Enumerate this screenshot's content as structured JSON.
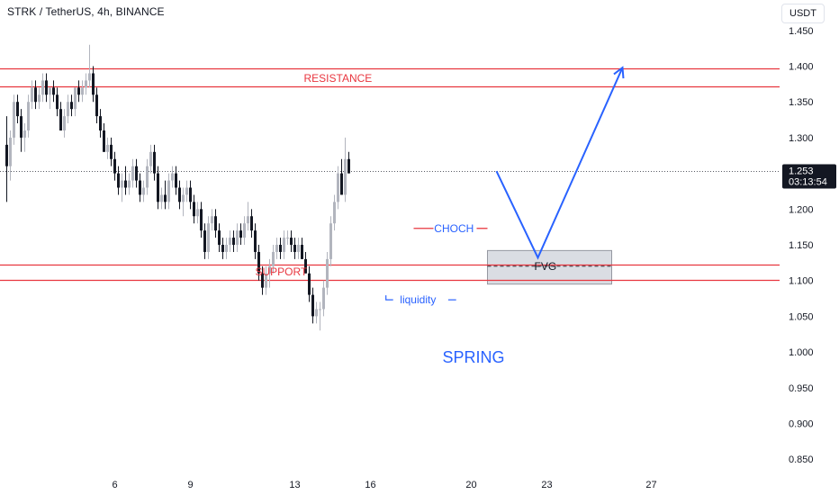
{
  "header": {
    "title": "STRK / TetherUS, 4h, BINANCE",
    "currency_button": "USDT"
  },
  "chart_data": {
    "type": "candlestick",
    "symbol": "STRK / TetherUS",
    "interval": "4h",
    "exchange": "BINANCE",
    "ylim": [
      0.82,
      1.475
    ],
    "y_ticks": [
      {
        "value": 1.45,
        "label": "1.450"
      },
      {
        "value": 1.4,
        "label": "1.400"
      },
      {
        "value": 1.35,
        "label": "1.350"
      },
      {
        "value": 1.3,
        "label": "1.300"
      },
      {
        "value": 1.2,
        "label": "1.200"
      },
      {
        "value": 1.15,
        "label": "1.150"
      },
      {
        "value": 1.1,
        "label": "1.100"
      },
      {
        "value": 1.05,
        "label": "1.050"
      },
      {
        "value": 1.0,
        "label": "1.000"
      },
      {
        "value": 0.95,
        "label": "0.950"
      },
      {
        "value": 0.9,
        "label": "0.900"
      },
      {
        "value": 0.85,
        "label": "0.850"
      }
    ],
    "x_ticks": [
      {
        "label": "6",
        "i": 30
      },
      {
        "label": "9",
        "i": 51
      },
      {
        "label": "13",
        "i": 80
      },
      {
        "label": "16",
        "i": 101
      },
      {
        "label": "20",
        "i": 129
      },
      {
        "label": "23",
        "i": 150
      },
      {
        "label": "27",
        "i": 179
      }
    ],
    "last_price": {
      "value": 1.253,
      "label": "1.253",
      "countdown": "03:13:54"
    },
    "colors": {
      "up": "#b2b5be",
      "down": "#131722",
      "level": "#e8363f",
      "projection": "#2962ff",
      "fvg_fill": "#d1d4dc"
    },
    "candles": [
      [
        1.29,
        1.33,
        1.21,
        1.26
      ],
      [
        1.26,
        1.31,
        1.24,
        1.3
      ],
      [
        1.3,
        1.36,
        1.29,
        1.35
      ],
      [
        1.35,
        1.36,
        1.32,
        1.33
      ],
      [
        1.33,
        1.34,
        1.28,
        1.3
      ],
      [
        1.3,
        1.32,
        1.28,
        1.31
      ],
      [
        1.31,
        1.36,
        1.3,
        1.35
      ],
      [
        1.35,
        1.38,
        1.34,
        1.37
      ],
      [
        1.37,
        1.38,
        1.34,
        1.35
      ],
      [
        1.35,
        1.37,
        1.34,
        1.36
      ],
      [
        1.36,
        1.39,
        1.35,
        1.38
      ],
      [
        1.38,
        1.39,
        1.35,
        1.36
      ],
      [
        1.36,
        1.37,
        1.34,
        1.37
      ],
      [
        1.37,
        1.38,
        1.35,
        1.36
      ],
      [
        1.36,
        1.37,
        1.33,
        1.34
      ],
      [
        1.34,
        1.35,
        1.31,
        1.31
      ],
      [
        1.31,
        1.34,
        1.3,
        1.33
      ],
      [
        1.33,
        1.36,
        1.32,
        1.35
      ],
      [
        1.35,
        1.36,
        1.33,
        1.34
      ],
      [
        1.34,
        1.37,
        1.33,
        1.37
      ],
      [
        1.37,
        1.38,
        1.35,
        1.36
      ],
      [
        1.36,
        1.38,
        1.35,
        1.37
      ],
      [
        1.37,
        1.39,
        1.36,
        1.38
      ],
      [
        1.38,
        1.43,
        1.37,
        1.39
      ],
      [
        1.39,
        1.4,
        1.35,
        1.36
      ],
      [
        1.36,
        1.37,
        1.32,
        1.33
      ],
      [
        1.33,
        1.34,
        1.3,
        1.31
      ],
      [
        1.31,
        1.32,
        1.28,
        1.28
      ],
      [
        1.28,
        1.3,
        1.27,
        1.29
      ],
      [
        1.29,
        1.3,
        1.26,
        1.27
      ],
      [
        1.27,
        1.28,
        1.24,
        1.25
      ],
      [
        1.25,
        1.26,
        1.22,
        1.23
      ],
      [
        1.23,
        1.25,
        1.21,
        1.24
      ],
      [
        1.24,
        1.26,
        1.22,
        1.23
      ],
      [
        1.23,
        1.25,
        1.22,
        1.24
      ],
      [
        1.24,
        1.27,
        1.23,
        1.26
      ],
      [
        1.26,
        1.27,
        1.23,
        1.24
      ],
      [
        1.24,
        1.25,
        1.21,
        1.22
      ],
      [
        1.22,
        1.24,
        1.21,
        1.23
      ],
      [
        1.23,
        1.27,
        1.22,
        1.26
      ],
      [
        1.26,
        1.29,
        1.25,
        1.28
      ],
      [
        1.28,
        1.29,
        1.24,
        1.25
      ],
      [
        1.25,
        1.26,
        1.2,
        1.21
      ],
      [
        1.21,
        1.23,
        1.2,
        1.22
      ],
      [
        1.22,
        1.24,
        1.2,
        1.21
      ],
      [
        1.21,
        1.25,
        1.2,
        1.24
      ],
      [
        1.24,
        1.26,
        1.23,
        1.25
      ],
      [
        1.25,
        1.26,
        1.22,
        1.23
      ],
      [
        1.23,
        1.24,
        1.2,
        1.21
      ],
      [
        1.21,
        1.23,
        1.19,
        1.22
      ],
      [
        1.22,
        1.24,
        1.21,
        1.23
      ],
      [
        1.23,
        1.24,
        1.2,
        1.21
      ],
      [
        1.21,
        1.22,
        1.18,
        1.19
      ],
      [
        1.19,
        1.21,
        1.18,
        1.2
      ],
      [
        1.2,
        1.21,
        1.16,
        1.17
      ],
      [
        1.17,
        1.18,
        1.13,
        1.14
      ],
      [
        1.14,
        1.19,
        1.13,
        1.18
      ],
      [
        1.18,
        1.2,
        1.17,
        1.19
      ],
      [
        1.19,
        1.2,
        1.16,
        1.17
      ],
      [
        1.17,
        1.18,
        1.14,
        1.15
      ],
      [
        1.15,
        1.16,
        1.13,
        1.14
      ],
      [
        1.14,
        1.16,
        1.13,
        1.15
      ],
      [
        1.15,
        1.17,
        1.14,
        1.16
      ],
      [
        1.16,
        1.17,
        1.14,
        1.15
      ],
      [
        1.15,
        1.18,
        1.14,
        1.17
      ],
      [
        1.17,
        1.18,
        1.15,
        1.16
      ],
      [
        1.16,
        1.19,
        1.15,
        1.18
      ],
      [
        1.18,
        1.21,
        1.17,
        1.19
      ],
      [
        1.19,
        1.2,
        1.16,
        1.17
      ],
      [
        1.17,
        1.18,
        1.13,
        1.14
      ],
      [
        1.14,
        1.15,
        1.1,
        1.11
      ],
      [
        1.11,
        1.12,
        1.08,
        1.09
      ],
      [
        1.09,
        1.12,
        1.08,
        1.11
      ],
      [
        1.11,
        1.13,
        1.09,
        1.12
      ],
      [
        1.12,
        1.15,
        1.11,
        1.14
      ],
      [
        1.14,
        1.16,
        1.13,
        1.15
      ],
      [
        1.15,
        1.16,
        1.13,
        1.14
      ],
      [
        1.14,
        1.17,
        1.13,
        1.16
      ],
      [
        1.16,
        1.17,
        1.15,
        1.16
      ],
      [
        1.16,
        1.17,
        1.14,
        1.15
      ],
      [
        1.15,
        1.16,
        1.13,
        1.14
      ],
      [
        1.14,
        1.16,
        1.13,
        1.15
      ],
      [
        1.15,
        1.16,
        1.13,
        1.13
      ],
      [
        1.13,
        1.14,
        1.11,
        1.11
      ],
      [
        1.11,
        1.12,
        1.07,
        1.08
      ],
      [
        1.08,
        1.09,
        1.04,
        1.05
      ],
      [
        1.05,
        1.07,
        1.04,
        1.06
      ],
      [
        1.06,
        1.07,
        1.03,
        1.06
      ],
      [
        1.06,
        1.1,
        1.05,
        1.09
      ],
      [
        1.09,
        1.14,
        1.08,
        1.13
      ],
      [
        1.13,
        1.19,
        1.12,
        1.18
      ],
      [
        1.18,
        1.22,
        1.17,
        1.21
      ],
      [
        1.21,
        1.26,
        1.2,
        1.25
      ],
      [
        1.25,
        1.27,
        1.22,
        1.22
      ],
      [
        1.22,
        1.3,
        1.21,
        1.27
      ],
      [
        1.27,
        1.28,
        1.25,
        1.25
      ]
    ],
    "levels": [
      {
        "name": "resistance-upper",
        "value": 1.397
      },
      {
        "name": "resistance-lower",
        "value": 1.372,
        "label": "RESISTANCE"
      },
      {
        "name": "support-upper",
        "value": 1.122,
        "label": "SUPPORT"
      },
      {
        "name": "support-lower",
        "value": 1.101
      }
    ],
    "annotations": {
      "choch": {
        "label": "CHOCH",
        "value": 1.173
      },
      "liquidity": {
        "label": "liquidity",
        "value": 1.073
      },
      "spring": {
        "label": "SPRING"
      },
      "fvg": {
        "label": "FVG",
        "y_top": 1.142,
        "y_bottom": 1.095,
        "mid": 1.12
      },
      "projection": [
        {
          "i": 136,
          "v": 1.253
        },
        {
          "i": 147.5,
          "v": 1.132
        },
        {
          "i": 171,
          "v": 1.398
        }
      ]
    }
  }
}
